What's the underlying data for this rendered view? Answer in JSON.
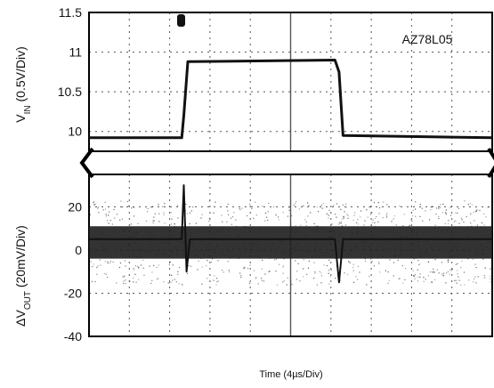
{
  "chart_data": {
    "type": "line",
    "device_label": "AZ78L05",
    "xlabel": "Time (4µs/Div)",
    "x_divisions": 10,
    "colors": {
      "trace": "#111111",
      "noise": "#222222",
      "grid": "#555555",
      "frame": "#000000"
    },
    "panels": [
      {
        "id": "vin",
        "ylabel_prefix": "V",
        "ylabel_sub": "IN",
        "ylabel_suffix": " (0.5V/Div)",
        "ylim": [
          9.75,
          11.5
        ],
        "ticks": [
          {
            "value": 11.5,
            "label": "11.5"
          },
          {
            "value": 11,
            "label": "11"
          },
          {
            "value": 10.5,
            "label": "10.5"
          },
          {
            "value": 10,
            "label": "10"
          }
        ],
        "series": [
          {
            "x": [
              0,
              2.3,
              2.35,
              2.45,
              6.1,
              6.2,
              6.3,
              10
            ],
            "y": [
              9.92,
              9.92,
              10.2,
              10.88,
              10.9,
              10.75,
              9.95,
              9.92
            ]
          }
        ]
      },
      {
        "id": "vout",
        "ylabel_prefix": "ΔV",
        "ylabel_sub": "OUT",
        "ylabel_suffix": " (20mV/Div)",
        "ylim": [
          -40,
          35
        ],
        "ticks": [
          {
            "value": 20,
            "label": "20"
          },
          {
            "value": 0,
            "label": "0"
          },
          {
            "value": -20,
            "label": "-20"
          },
          {
            "value": -40,
            "label": "-40"
          }
        ],
        "series": [
          {
            "x": [
              0,
              2.3,
              2.35,
              2.42,
              2.5,
              6.1,
              6.2,
              6.3,
              10
            ],
            "y": [
              5,
              5,
              30,
              -10,
              5,
              5,
              -15,
              5,
              5
            ]
          }
        ],
        "noise_band": [
          -4,
          11
        ]
      }
    ]
  }
}
